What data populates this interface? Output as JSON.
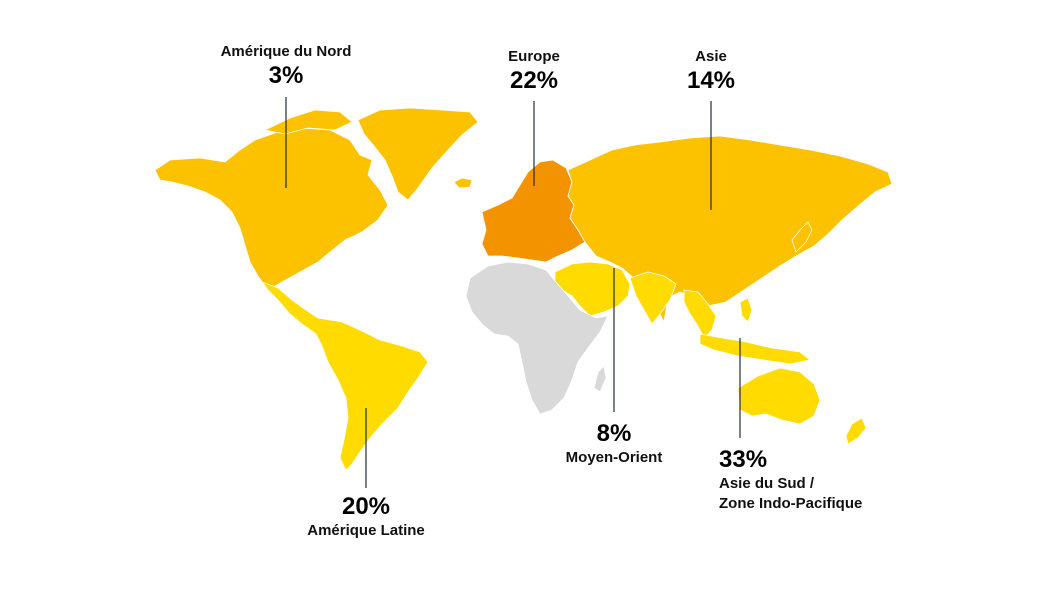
{
  "regions": [
    {
      "id": "north-america",
      "name": "Amérique du Nord",
      "pct": "3%",
      "color": "#fcc200"
    },
    {
      "id": "europe",
      "name": "Europe",
      "pct": "22%",
      "color": "#f49300"
    },
    {
      "id": "asia",
      "name": "Asie",
      "pct": "14%",
      "color": "#fcc200"
    },
    {
      "id": "middle-east",
      "name": "Moyen-Orient",
      "pct": "8%",
      "color": "#ffdb00"
    },
    {
      "id": "south-asia-pacific",
      "name_line1": "Asie du Sud /",
      "name_line2": "Zone Indo-Pacifique",
      "pct": "33%",
      "color": "#ffdb00"
    },
    {
      "id": "latin-america",
      "name": "Amérique Latine",
      "pct": "20%",
      "color": "#ffdb00"
    }
  ],
  "colors": {
    "africa": "#d9d9d9",
    "leader_line": "#1f2d3d",
    "borders": "#ffffff"
  }
}
